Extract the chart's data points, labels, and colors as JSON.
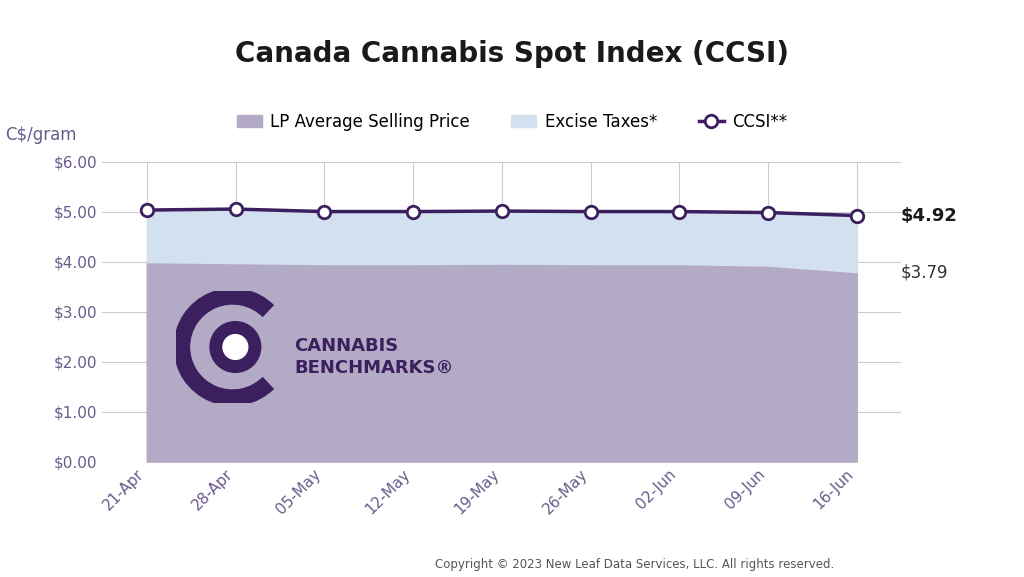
{
  "title": "Canada Cannabis Spot Index (CCSI)",
  "ylabel": "C$/gram",
  "x_labels": [
    "21-Apr",
    "28-Apr",
    "05-May",
    "12-May",
    "19-May",
    "26-May",
    "02-Jun",
    "09-Jun",
    "16-Jun"
  ],
  "lp_avg": [
    3.99,
    3.97,
    3.95,
    3.95,
    3.96,
    3.95,
    3.95,
    3.92,
    3.79
  ],
  "ccsi": [
    5.03,
    5.05,
    5.0,
    5.0,
    5.01,
    5.0,
    5.0,
    4.98,
    4.92
  ],
  "ylim": [
    0.0,
    6.0
  ],
  "yticks": [
    0.0,
    1.0,
    2.0,
    3.0,
    4.0,
    5.0,
    6.0
  ],
  "lp_color": "#b3aac5",
  "excise_color": "#d3e0f0",
  "ccsi_line_color": "#3b1f5e",
  "ccsi_marker_face": "#ffffff",
  "ccsi_marker_edge": "#3b1f5e",
  "grid_color": "#cccccc",
  "background_color": "#ffffff",
  "tick_color": "#6b5b8c",
  "title_fontsize": 20,
  "tick_fontsize": 11,
  "annotation_ccsi": "$4.92",
  "annotation_lp": "$3.79",
  "copyright": "Copyright © 2023 New Leaf Data Services, LLC. All rights reserved.",
  "legend_lp": "LP Average Selling Price",
  "legend_excise": "Excise Taxes*",
  "legend_ccsi": "CCSI**",
  "logo_color": "#3b1f5e",
  "logo_color_light": "#b3aac5"
}
